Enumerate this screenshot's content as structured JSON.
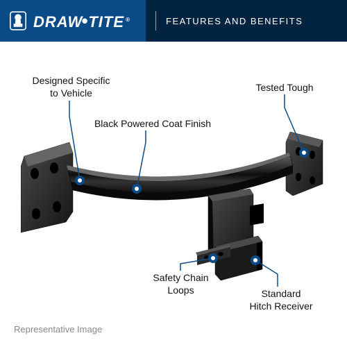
{
  "header": {
    "brand_left": "DRAW",
    "brand_right": "TITE",
    "title": "FEATURES AND BENEFITS",
    "logo_bg": "#0a4b87",
    "title_bg": "#032440"
  },
  "callouts": {
    "designed": "Designed Specific\nto Vehicle",
    "finish": "Black Powered Coat Finish",
    "tested": "Tested Tough",
    "loops": "Safety Chain\nLoops",
    "receiver": "Standard\nHitch Receiver"
  },
  "footer": "Representative Image",
  "style": {
    "marker_color": "#0a4b87",
    "marker_radius_outer": 7,
    "marker_radius_inner": 3,
    "leader_stroke": "#0a4b87",
    "leader_width": 1.5,
    "hitch_body": "#1a1a1a",
    "hitch_highlight": "#4a4a4a",
    "hitch_shadow": "#000000",
    "hitch_plate": "#2a2a2a",
    "label_fontsize": 14,
    "label_color": "#111111",
    "footer_color": "#888888",
    "background": "#ffffff"
  }
}
